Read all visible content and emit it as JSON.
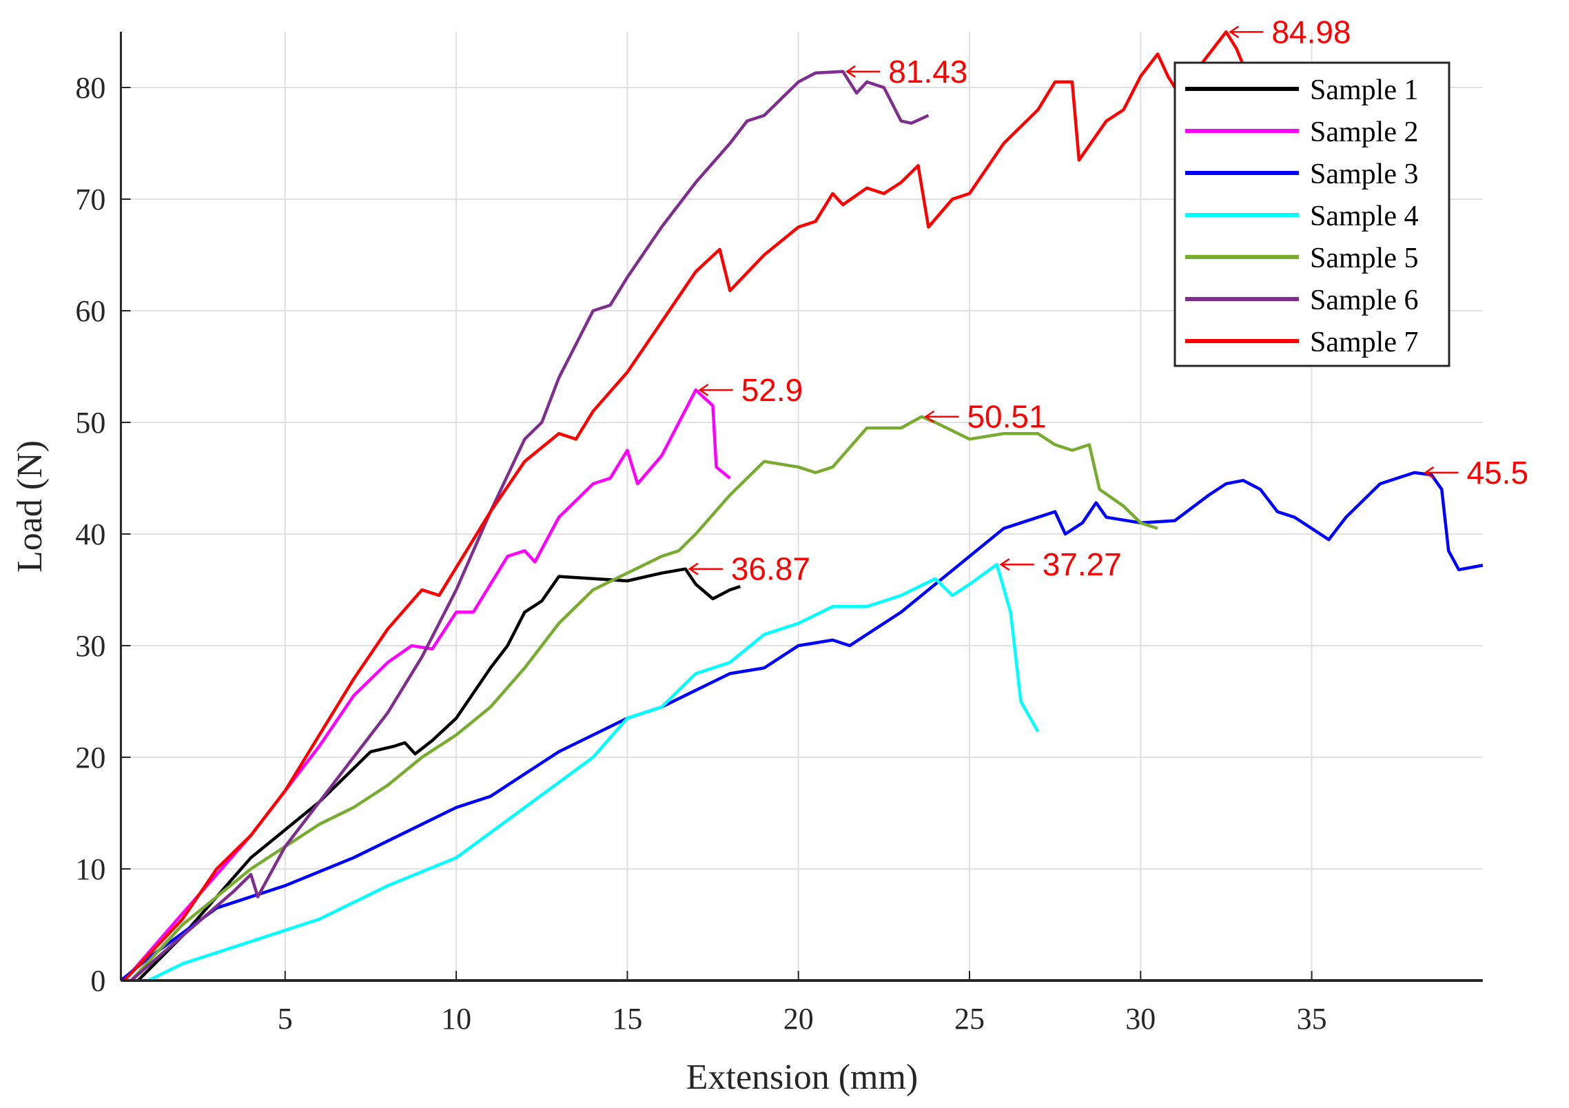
{
  "chart_data": {
    "type": "line",
    "title": "",
    "xlabel": "Extension (mm)",
    "ylabel": "Load (N)",
    "xlim": [
      0.2,
      40
    ],
    "ylim": [
      0,
      85
    ],
    "xticks": [
      5,
      10,
      15,
      20,
      25,
      30,
      35
    ],
    "yticks": [
      0,
      10,
      20,
      30,
      40,
      50,
      60,
      70,
      80
    ],
    "grid": true,
    "legend_position": "top-right",
    "series": [
      {
        "name": "Sample 1",
        "color": "#000000",
        "points": [
          [
            0.7,
            0
          ],
          [
            2,
            4
          ],
          [
            4,
            11
          ],
          [
            5,
            13.5
          ],
          [
            6,
            16
          ],
          [
            7,
            19
          ],
          [
            7.5,
            20.5
          ],
          [
            8.2,
            21
          ],
          [
            8.5,
            21.3
          ],
          [
            8.8,
            20.3
          ],
          [
            9.3,
            21.5
          ],
          [
            10,
            23.5
          ],
          [
            11,
            28
          ],
          [
            11.5,
            30
          ],
          [
            12,
            33
          ],
          [
            12.5,
            34
          ],
          [
            13,
            36.2
          ],
          [
            14,
            36
          ],
          [
            15,
            35.8
          ],
          [
            16,
            36.5
          ],
          [
            16.7,
            36.87
          ],
          [
            17,
            35.5
          ],
          [
            17.5,
            34.2
          ],
          [
            18,
            35
          ],
          [
            18.3,
            35.3
          ]
        ]
      },
      {
        "name": "Sample 2",
        "color": "#ff00ff",
        "points": [
          [
            0.3,
            0
          ],
          [
            2,
            6
          ],
          [
            4,
            13
          ],
          [
            6,
            21
          ],
          [
            7,
            25.5
          ],
          [
            8,
            28.5
          ],
          [
            8.7,
            30
          ],
          [
            9.3,
            29.7
          ],
          [
            10,
            33
          ],
          [
            10.5,
            33
          ],
          [
            11.5,
            38
          ],
          [
            12,
            38.5
          ],
          [
            12.3,
            37.5
          ],
          [
            13,
            41.5
          ],
          [
            14,
            44.5
          ],
          [
            14.5,
            45
          ],
          [
            15,
            47.5
          ],
          [
            15.3,
            44.5
          ],
          [
            16,
            47
          ],
          [
            17,
            52.9
          ],
          [
            17.5,
            51.5
          ],
          [
            17.6,
            46
          ],
          [
            18,
            45
          ]
        ]
      },
      {
        "name": "Sample 3",
        "color": "#0000ff",
        "points": [
          [
            0.2,
            0
          ],
          [
            1,
            2
          ],
          [
            3,
            6.5
          ],
          [
            5,
            8.5
          ],
          [
            7,
            11
          ],
          [
            9,
            14
          ],
          [
            10,
            15.5
          ],
          [
            11,
            16.5
          ],
          [
            12,
            18.5
          ],
          [
            13,
            20.5
          ],
          [
            14,
            22
          ],
          [
            15,
            23.5
          ],
          [
            16,
            24.5
          ],
          [
            17,
            26
          ],
          [
            18,
            27.5
          ],
          [
            19,
            28
          ],
          [
            20,
            30
          ],
          [
            21,
            30.5
          ],
          [
            21.5,
            30
          ],
          [
            22,
            31
          ],
          [
            23,
            33
          ],
          [
            24,
            35.5
          ],
          [
            25,
            38
          ],
          [
            26,
            40.5
          ],
          [
            27,
            41.5
          ],
          [
            27.5,
            42
          ],
          [
            27.8,
            40
          ],
          [
            28.3,
            41
          ],
          [
            28.7,
            42.8
          ],
          [
            29,
            41.5
          ],
          [
            30,
            41
          ],
          [
            31,
            41.2
          ],
          [
            32,
            43.5
          ],
          [
            32.5,
            44.5
          ],
          [
            33,
            44.8
          ],
          [
            33.5,
            44
          ],
          [
            34,
            42
          ],
          [
            34.5,
            41.5
          ],
          [
            35,
            40.5
          ],
          [
            35.5,
            39.5
          ],
          [
            36,
            41.5
          ],
          [
            37,
            44.5
          ],
          [
            38,
            45.5
          ],
          [
            38.5,
            45.3
          ],
          [
            38.8,
            44
          ],
          [
            39,
            38.5
          ],
          [
            39.3,
            36.8
          ],
          [
            40,
            37.2
          ]
        ]
      },
      {
        "name": "Sample 4",
        "color": "#00ffff",
        "points": [
          [
            1,
            0
          ],
          [
            2,
            1.5
          ],
          [
            4,
            3.5
          ],
          [
            6,
            5.5
          ],
          [
            8,
            8.5
          ],
          [
            10,
            11
          ],
          [
            12,
            15.5
          ],
          [
            14,
            20
          ],
          [
            15,
            23.5
          ],
          [
            16,
            24.5
          ],
          [
            17,
            27.5
          ],
          [
            18,
            28.5
          ],
          [
            19,
            31
          ],
          [
            20,
            32
          ],
          [
            21,
            33.5
          ],
          [
            22,
            33.5
          ],
          [
            23,
            34.5
          ],
          [
            24,
            36
          ],
          [
            24.5,
            34.5
          ],
          [
            25,
            35.5
          ],
          [
            25.8,
            37.27
          ],
          [
            26.2,
            33
          ],
          [
            26.5,
            25
          ],
          [
            27,
            22.3
          ]
        ]
      },
      {
        "name": "Sample 5",
        "color": "#77ac30",
        "points": [
          [
            0.5,
            0
          ],
          [
            2,
            5
          ],
          [
            4,
            10
          ],
          [
            6,
            14
          ],
          [
            7,
            15.5
          ],
          [
            8,
            17.5
          ],
          [
            9,
            20
          ],
          [
            10,
            22
          ],
          [
            11,
            24.5
          ],
          [
            12,
            28
          ],
          [
            13,
            32
          ],
          [
            14,
            35
          ],
          [
            15,
            36.5
          ],
          [
            16,
            38
          ],
          [
            16.5,
            38.5
          ],
          [
            17,
            40
          ],
          [
            18,
            43.5
          ],
          [
            19,
            46.5
          ],
          [
            20,
            46
          ],
          [
            20.5,
            45.5
          ],
          [
            21,
            46
          ],
          [
            22,
            49.5
          ],
          [
            23,
            49.5
          ],
          [
            23.6,
            50.51
          ],
          [
            24,
            50
          ],
          [
            25,
            48.5
          ],
          [
            26,
            49
          ],
          [
            27,
            49
          ],
          [
            27.5,
            48
          ],
          [
            28,
            47.5
          ],
          [
            28.5,
            48
          ],
          [
            28.8,
            44
          ],
          [
            29.5,
            42.5
          ],
          [
            30,
            41
          ],
          [
            30.5,
            40.5
          ]
        ]
      },
      {
        "name": "Sample 6",
        "color": "#7e2f8e",
        "points": [
          [
            0.5,
            0
          ],
          [
            2,
            4
          ],
          [
            3.5,
            8
          ],
          [
            4,
            9.5
          ],
          [
            4.2,
            7.5
          ],
          [
            5,
            12
          ],
          [
            6,
            16
          ],
          [
            7,
            20
          ],
          [
            8,
            24
          ],
          [
            9,
            29
          ],
          [
            10,
            35
          ],
          [
            11,
            42
          ],
          [
            12,
            48.5
          ],
          [
            12.5,
            50
          ],
          [
            13,
            54
          ],
          [
            14,
            60
          ],
          [
            14.5,
            60.5
          ],
          [
            15,
            63
          ],
          [
            16,
            67.5
          ],
          [
            17,
            71.5
          ],
          [
            18,
            75
          ],
          [
            18.5,
            77
          ],
          [
            19,
            77.5
          ],
          [
            20,
            80.5
          ],
          [
            20.5,
            81.3
          ],
          [
            21.3,
            81.43
          ],
          [
            21.7,
            79.5
          ],
          [
            22,
            80.5
          ],
          [
            22.5,
            80
          ],
          [
            23,
            77
          ],
          [
            23.3,
            76.8
          ],
          [
            23.8,
            77.5
          ]
        ]
      },
      {
        "name": "Sample 7",
        "color": "#ff0000",
        "points": [
          [
            0.3,
            0
          ],
          [
            2,
            5.5
          ],
          [
            3,
            10
          ],
          [
            4,
            13
          ],
          [
            5,
            17
          ],
          [
            6,
            22
          ],
          [
            7,
            27
          ],
          [
            8,
            31.5
          ],
          [
            9,
            35
          ],
          [
            9.5,
            34.5
          ],
          [
            10,
            37
          ],
          [
            11,
            42
          ],
          [
            12,
            46.5
          ],
          [
            13,
            49
          ],
          [
            13.5,
            48.5
          ],
          [
            14,
            51
          ],
          [
            15,
            54.5
          ],
          [
            16,
            59
          ],
          [
            17,
            63.5
          ],
          [
            17.7,
            65.5
          ],
          [
            18,
            61.8
          ],
          [
            19,
            65
          ],
          [
            20,
            67.5
          ],
          [
            20.5,
            68
          ],
          [
            21,
            70.5
          ],
          [
            21.3,
            69.5
          ],
          [
            22,
            71
          ],
          [
            22.5,
            70.5
          ],
          [
            23,
            71.5
          ],
          [
            23.5,
            73
          ],
          [
            23.8,
            67.5
          ],
          [
            24.5,
            70
          ],
          [
            25,
            70.5
          ],
          [
            26,
            75
          ],
          [
            27,
            78
          ],
          [
            27.5,
            80.5
          ],
          [
            28,
            80.5
          ],
          [
            28.2,
            73.5
          ],
          [
            29,
            77
          ],
          [
            29.5,
            78
          ],
          [
            30,
            81
          ],
          [
            30.5,
            83
          ],
          [
            30.8,
            81
          ],
          [
            31,
            80
          ],
          [
            31.5,
            81
          ],
          [
            32,
            83
          ],
          [
            32.5,
            84.98
          ],
          [
            32.8,
            83.5
          ],
          [
            33,
            82
          ]
        ]
      }
    ],
    "annotations": [
      {
        "text": "36.87",
        "x": 16.7,
        "y": 36.87
      },
      {
        "text": "52.9",
        "x": 17,
        "y": 52.9
      },
      {
        "text": "45.5",
        "x": 38.2,
        "y": 45.5
      },
      {
        "text": "37.27",
        "x": 25.8,
        "y": 37.27
      },
      {
        "text": "50.51",
        "x": 23.6,
        "y": 50.51
      },
      {
        "text": "81.43",
        "x": 21.3,
        "y": 81.43
      },
      {
        "text": "84.98",
        "x": 32.5,
        "y": 84.98
      }
    ],
    "annotation_color": "#ff0000"
  }
}
